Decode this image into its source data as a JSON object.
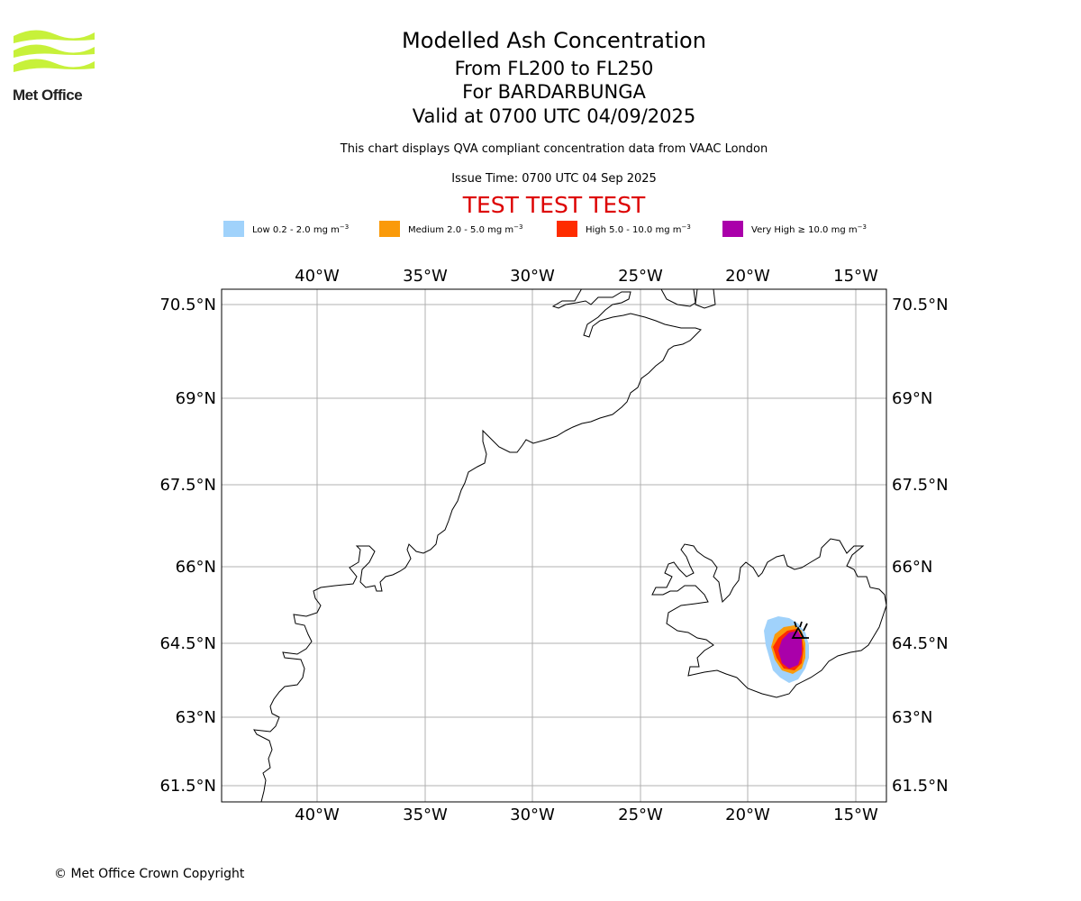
{
  "header": {
    "title": "Modelled Ash Concentration",
    "levels": "From FL200 to FL250",
    "volcano": "For BARDARBUNGA",
    "valid": "Valid at 0700 UTC 04/09/2025",
    "description": "This chart displays QVA compliant concentration data from VAAC London",
    "issue": "Issue Time: 0700 UTC 04 Sep 2025",
    "test_banner": "TEST TEST TEST"
  },
  "logo": {
    "text": "Met Office",
    "color": "#c7f13a"
  },
  "legend": [
    {
      "label": "Low 0.2 - 2.0 mg m",
      "exp": "−3",
      "color": "#a0d2fb"
    },
    {
      "label": "Medium 2.0 - 5.0 mg m",
      "exp": "−3",
      "color": "#fa9a0a"
    },
    {
      "label": "High 5.0 - 10.0 mg m",
      "exp": "−3",
      "color": "#fe2c00"
    },
    {
      "label": "Very High ≥ 10.0 mg m",
      "exp": "−3",
      "color": "#aa00aa"
    }
  ],
  "map": {
    "lon_ticks": [
      "40°W",
      "35°W",
      "30°W",
      "25°W",
      "20°W",
      "15°W"
    ],
    "lat_ticks": [
      "70.5°N",
      "69°N",
      "67.5°N",
      "66°N",
      "64.5°N",
      "63°N",
      "61.5°N"
    ],
    "grid": true
  },
  "footer": {
    "copyright": "© Met Office Crown Copyright"
  }
}
